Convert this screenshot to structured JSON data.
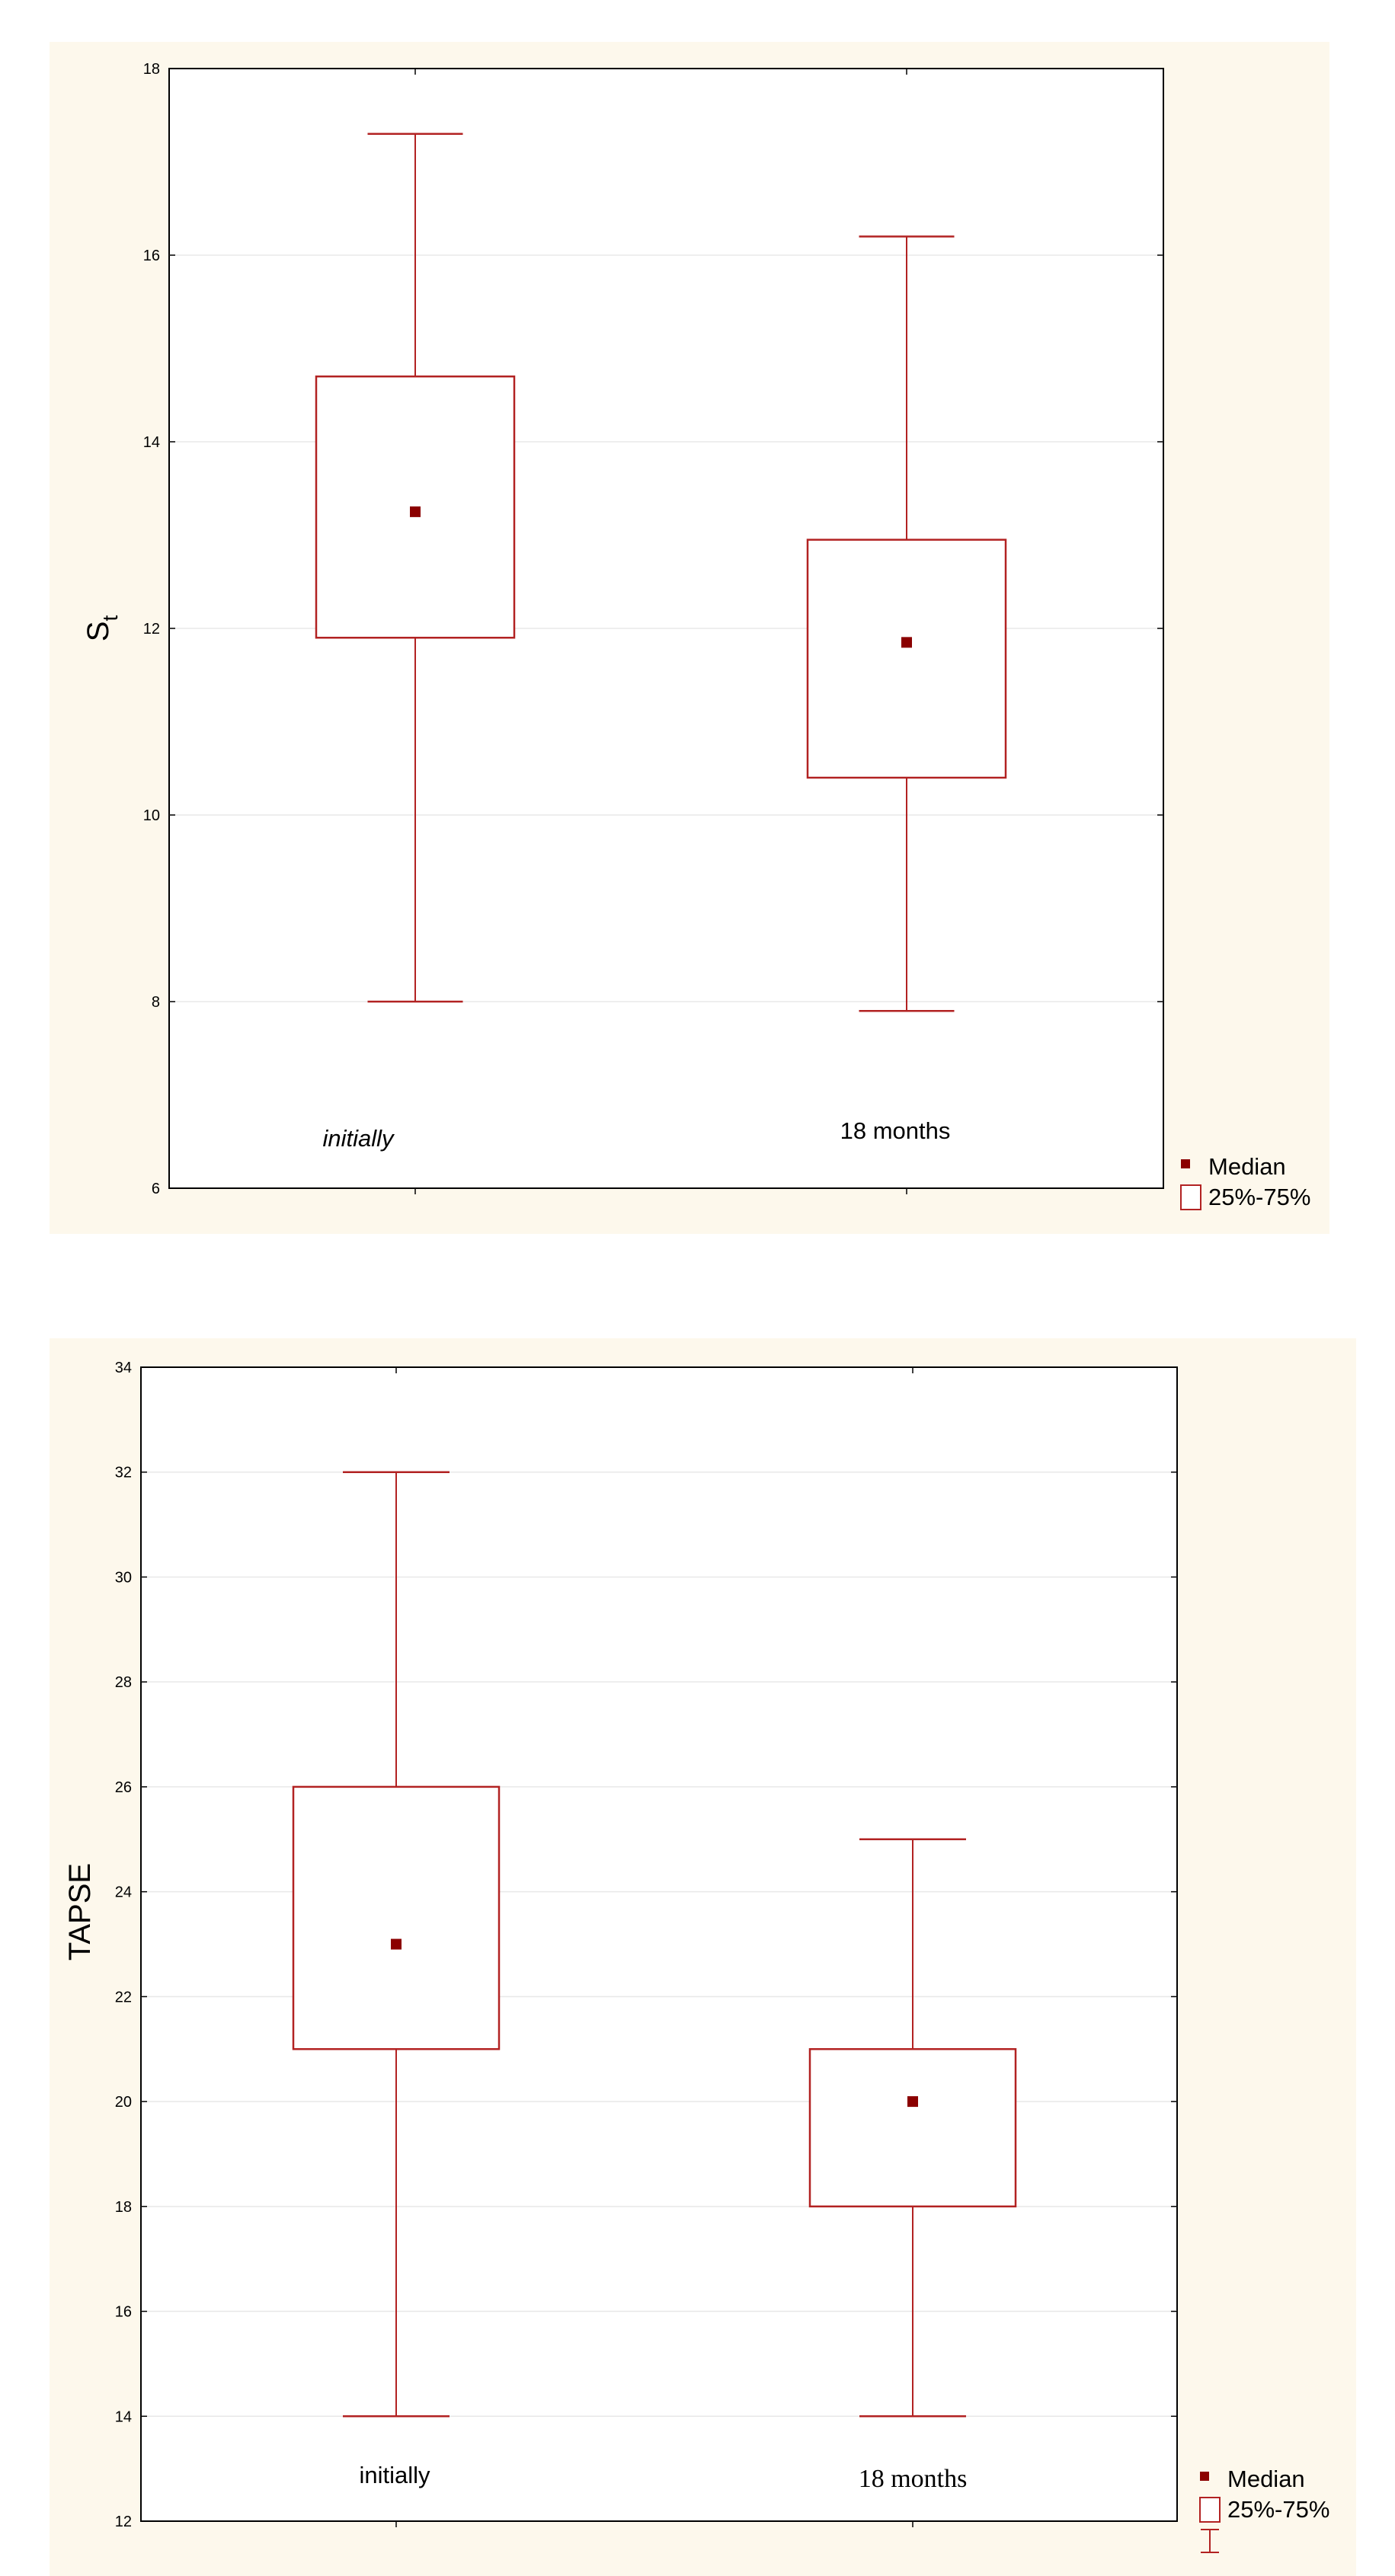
{
  "colors": {
    "panel_bg": "#fdf8ec",
    "plot_bg": "#ffffff",
    "box": "#b22222",
    "median": "#8b0000",
    "grid": "#e8e8e8",
    "axis": "#000000"
  },
  "chart_data": [
    {
      "type": "box",
      "ylabel": "S",
      "ylabel_sub": "t",
      "ylim": [
        6,
        18
      ],
      "yticks": [
        "6",
        "8",
        "10",
        "12",
        "14",
        "16",
        "18"
      ],
      "categories": [
        "initially",
        "18 months"
      ],
      "boxes": [
        {
          "label": "initially",
          "min": 8.0,
          "q1": 11.9,
          "median": 13.25,
          "q3": 14.7,
          "max": 17.3
        },
        {
          "label": "18 months",
          "min": 7.9,
          "q1": 10.4,
          "median": 11.85,
          "q3": 12.95,
          "max": 16.2
        }
      ],
      "legend": [
        {
          "symbol": "median-marker",
          "label": "Median"
        },
        {
          "symbol": "box",
          "label": "25%-75%"
        }
      ]
    },
    {
      "type": "box",
      "ylabel": "TAPSE",
      "ylim": [
        12,
        34
      ],
      "yticks": [
        "12",
        "14",
        "16",
        "18",
        "20",
        "22",
        "24",
        "26",
        "28",
        "30",
        "32",
        "34"
      ],
      "categories": [
        "initially",
        "18 months"
      ],
      "boxes": [
        {
          "label": "initially",
          "min": 14,
          "q1": 21,
          "median": 23,
          "q3": 26,
          "max": 32
        },
        {
          "label": "18 months",
          "min": 14,
          "q1": 18,
          "median": 20,
          "q3": 21,
          "max": 25
        }
      ],
      "legend": [
        {
          "symbol": "median-marker",
          "label": "Median"
        },
        {
          "symbol": "box",
          "label": "25%-75%"
        },
        {
          "symbol": "whisker",
          "label": ""
        }
      ]
    }
  ]
}
